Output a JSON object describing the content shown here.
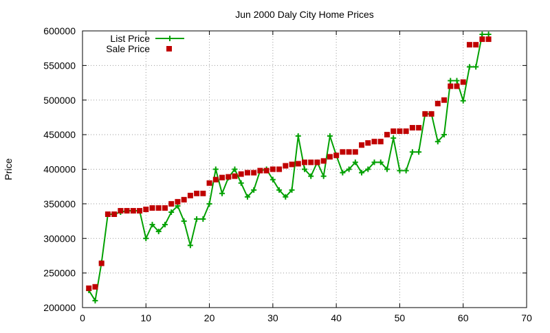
{
  "chart_data": {
    "type": "line",
    "title": "Jun 2000 Daly City Home Prices",
    "xlabel": "",
    "ylabel": "Price",
    "xlim": [
      0,
      70
    ],
    "ylim": [
      200000,
      600000
    ],
    "x_ticks": [
      0,
      10,
      20,
      30,
      40,
      50,
      60,
      70
    ],
    "y_ticks": [
      200000,
      250000,
      300000,
      350000,
      400000,
      450000,
      500000,
      550000,
      600000
    ],
    "grid": true,
    "legend_position": "top-left",
    "series": [
      {
        "name": "List Price",
        "style": "line-with-plus-markers",
        "color": "#00a000",
        "x": [
          1,
          2,
          3,
          4,
          5,
          6,
          7,
          8,
          9,
          10,
          11,
          12,
          13,
          14,
          15,
          16,
          17,
          18,
          19,
          20,
          21,
          22,
          23,
          24,
          25,
          26,
          27,
          28,
          29,
          30,
          31,
          32,
          33,
          34,
          35,
          36,
          37,
          38,
          39,
          40,
          41,
          42,
          43,
          44,
          45,
          46,
          47,
          48,
          49,
          50,
          51,
          52,
          53,
          54,
          55,
          56,
          57,
          58,
          59,
          60,
          61,
          62,
          63,
          64
        ],
        "y": [
          225000,
          210000,
          265000,
          335000,
          335000,
          338000,
          340000,
          340000,
          340000,
          300000,
          320000,
          310000,
          320000,
          338000,
          347000,
          325000,
          290000,
          328000,
          328000,
          350000,
          400000,
          365000,
          388000,
          400000,
          380000,
          360000,
          370000,
          398000,
          400000,
          385000,
          370000,
          360000,
          370000,
          448000,
          400000,
          390000,
          410000,
          390000,
          448000,
          420000,
          395000,
          400000,
          410000,
          395000,
          400000,
          410000,
          410000,
          400000,
          445000,
          398000,
          398000,
          425000,
          425000,
          480000,
          480000,
          440000,
          450000,
          528000,
          528000,
          499000,
          548000,
          548000,
          595000,
          595000
        ]
      },
      {
        "name": "Sale Price",
        "style": "square-markers",
        "color": "#c00000",
        "x": [
          1,
          2,
          3,
          4,
          5,
          6,
          7,
          8,
          9,
          10,
          11,
          12,
          13,
          14,
          15,
          16,
          17,
          18,
          19,
          20,
          21,
          22,
          23,
          24,
          25,
          26,
          27,
          28,
          29,
          30,
          31,
          32,
          33,
          34,
          35,
          36,
          37,
          38,
          39,
          40,
          41,
          42,
          43,
          44,
          45,
          46,
          47,
          48,
          49,
          50,
          51,
          52,
          53,
          54,
          55,
          56,
          57,
          58,
          59,
          60,
          61,
          62,
          63,
          64
        ],
        "y": [
          228000,
          230000,
          264000,
          335000,
          335000,
          340000,
          340000,
          340000,
          340000,
          342000,
          344000,
          344000,
          344000,
          350000,
          353000,
          356000,
          362000,
          365000,
          365000,
          380000,
          385000,
          388000,
          389000,
          390000,
          393000,
          395000,
          395000,
          398000,
          398000,
          400000,
          400000,
          405000,
          407000,
          408000,
          410000,
          410000,
          410000,
          412000,
          418000,
          420000,
          425000,
          425000,
          425000,
          435000,
          438000,
          440000,
          440000,
          450000,
          455000,
          455000,
          455000,
          460000,
          460000,
          480000,
          480000,
          495000,
          500000,
          520000,
          520000,
          526000,
          580000,
          580000,
          588000,
          588000
        ]
      }
    ]
  }
}
